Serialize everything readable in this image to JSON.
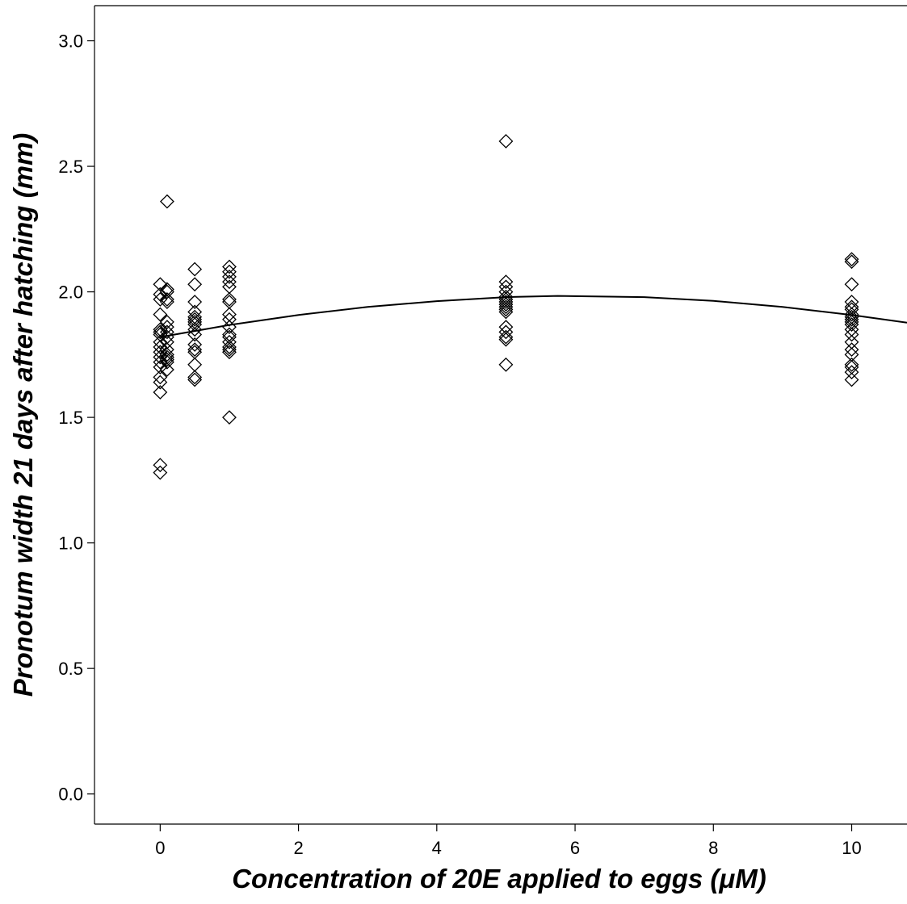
{
  "chart_data": {
    "type": "scatter",
    "title": "",
    "xlabel": "Concentration of 20E applied to eggs (μM)",
    "ylabel": "Pronotum width 21 days after hatching (mm)",
    "xlim": [
      -0.95,
      10.8
    ],
    "ylim": [
      -0.12,
      3.14
    ],
    "x_ticks": [
      0,
      2,
      4,
      6,
      8,
      10
    ],
    "y_ticks": [
      0.0,
      0.5,
      1.0,
      1.5,
      2.0,
      2.5,
      3.0
    ],
    "x_tick_labels": [
      "0",
      "2",
      "4",
      "6",
      "8",
      "10"
    ],
    "y_tick_labels": [
      "0.0",
      "0.5",
      "1.0",
      "1.5",
      "2.0",
      "2.5",
      "3.0"
    ],
    "grid": false,
    "legend": false,
    "marker": "open-diamond",
    "points": [
      {
        "x": 0,
        "y": 2.03
      },
      {
        "x": 0,
        "y": 1.99
      },
      {
        "x": 0,
        "y": 1.97
      },
      {
        "x": 0,
        "y": 1.91
      },
      {
        "x": 0,
        "y": 1.85
      },
      {
        "x": 0,
        "y": 1.84
      },
      {
        "x": 0,
        "y": 1.83
      },
      {
        "x": 0,
        "y": 1.8
      },
      {
        "x": 0,
        "y": 1.78
      },
      {
        "x": 0,
        "y": 1.76
      },
      {
        "x": 0,
        "y": 1.74
      },
      {
        "x": 0,
        "y": 1.72
      },
      {
        "x": 0,
        "y": 1.7
      },
      {
        "x": 0,
        "y": 1.66
      },
      {
        "x": 0,
        "y": 1.64
      },
      {
        "x": 0,
        "y": 1.6
      },
      {
        "x": 0,
        "y": 1.31
      },
      {
        "x": 0,
        "y": 1.28
      },
      {
        "x": 0.1,
        "y": 2.36
      },
      {
        "x": 0.1,
        "y": 2.01
      },
      {
        "x": 0.1,
        "y": 2.0
      },
      {
        "x": 0.1,
        "y": 1.97
      },
      {
        "x": 0.1,
        "y": 1.96
      },
      {
        "x": 0.1,
        "y": 1.88
      },
      {
        "x": 0.1,
        "y": 1.86
      },
      {
        "x": 0.1,
        "y": 1.84
      },
      {
        "x": 0.1,
        "y": 1.82
      },
      {
        "x": 0.1,
        "y": 1.8
      },
      {
        "x": 0.1,
        "y": 1.77
      },
      {
        "x": 0.1,
        "y": 1.75
      },
      {
        "x": 0.1,
        "y": 1.74
      },
      {
        "x": 0.1,
        "y": 1.73
      },
      {
        "x": 0.1,
        "y": 1.72
      },
      {
        "x": 0.1,
        "y": 1.69
      },
      {
        "x": 0.5,
        "y": 2.09
      },
      {
        "x": 0.5,
        "y": 2.03
      },
      {
        "x": 0.5,
        "y": 1.96
      },
      {
        "x": 0.5,
        "y": 1.92
      },
      {
        "x": 0.5,
        "y": 1.9
      },
      {
        "x": 0.5,
        "y": 1.89
      },
      {
        "x": 0.5,
        "y": 1.88
      },
      {
        "x": 0.5,
        "y": 1.87
      },
      {
        "x": 0.5,
        "y": 1.85
      },
      {
        "x": 0.5,
        "y": 1.83
      },
      {
        "x": 0.5,
        "y": 1.79
      },
      {
        "x": 0.5,
        "y": 1.77
      },
      {
        "x": 0.5,
        "y": 1.76
      },
      {
        "x": 0.5,
        "y": 1.71
      },
      {
        "x": 0.5,
        "y": 1.66
      },
      {
        "x": 0.5,
        "y": 1.65
      },
      {
        "x": 1,
        "y": 2.1
      },
      {
        "x": 1,
        "y": 2.08
      },
      {
        "x": 1,
        "y": 2.06
      },
      {
        "x": 1,
        "y": 2.04
      },
      {
        "x": 1,
        "y": 2.02
      },
      {
        "x": 1,
        "y": 1.97
      },
      {
        "x": 1,
        "y": 1.96
      },
      {
        "x": 1,
        "y": 1.91
      },
      {
        "x": 1,
        "y": 1.89
      },
      {
        "x": 1,
        "y": 1.86
      },
      {
        "x": 1,
        "y": 1.83
      },
      {
        "x": 1,
        "y": 1.82
      },
      {
        "x": 1,
        "y": 1.8
      },
      {
        "x": 1,
        "y": 1.78
      },
      {
        "x": 1,
        "y": 1.77
      },
      {
        "x": 1,
        "y": 1.76
      },
      {
        "x": 1,
        "y": 1.5
      },
      {
        "x": 5,
        "y": 2.6
      },
      {
        "x": 5,
        "y": 2.04
      },
      {
        "x": 5,
        "y": 2.02
      },
      {
        "x": 5,
        "y": 2.0
      },
      {
        "x": 5,
        "y": 1.98
      },
      {
        "x": 5,
        "y": 1.97
      },
      {
        "x": 5,
        "y": 1.96
      },
      {
        "x": 5,
        "y": 1.95
      },
      {
        "x": 5,
        "y": 1.94
      },
      {
        "x": 5,
        "y": 1.93
      },
      {
        "x": 5,
        "y": 1.92
      },
      {
        "x": 5,
        "y": 1.86
      },
      {
        "x": 5,
        "y": 1.84
      },
      {
        "x": 5,
        "y": 1.82
      },
      {
        "x": 5,
        "y": 1.81
      },
      {
        "x": 5,
        "y": 1.71
      },
      {
        "x": 10,
        "y": 2.13
      },
      {
        "x": 10,
        "y": 2.12
      },
      {
        "x": 10,
        "y": 2.03
      },
      {
        "x": 10,
        "y": 1.96
      },
      {
        "x": 10,
        "y": 1.94
      },
      {
        "x": 10,
        "y": 1.93
      },
      {
        "x": 10,
        "y": 1.91
      },
      {
        "x": 10,
        "y": 1.9
      },
      {
        "x": 10,
        "y": 1.89
      },
      {
        "x": 10,
        "y": 1.88
      },
      {
        "x": 10,
        "y": 1.87
      },
      {
        "x": 10,
        "y": 1.85
      },
      {
        "x": 10,
        "y": 1.83
      },
      {
        "x": 10,
        "y": 1.8
      },
      {
        "x": 10,
        "y": 1.77
      },
      {
        "x": 10,
        "y": 1.75
      },
      {
        "x": 10,
        "y": 1.71
      },
      {
        "x": 10,
        "y": 1.7
      },
      {
        "x": 10,
        "y": 1.68
      },
      {
        "x": 10,
        "y": 1.65
      }
    ],
    "fit_curve": {
      "type": "quadratic",
      "x": [
        0,
        1,
        2,
        3,
        4,
        5,
        5.75,
        7,
        8,
        9,
        10,
        10.8
      ],
      "y": [
        1.82,
        1.868,
        1.908,
        1.94,
        1.963,
        1.979,
        1.984,
        1.979,
        1.964,
        1.94,
        1.908,
        1.877
      ]
    }
  }
}
